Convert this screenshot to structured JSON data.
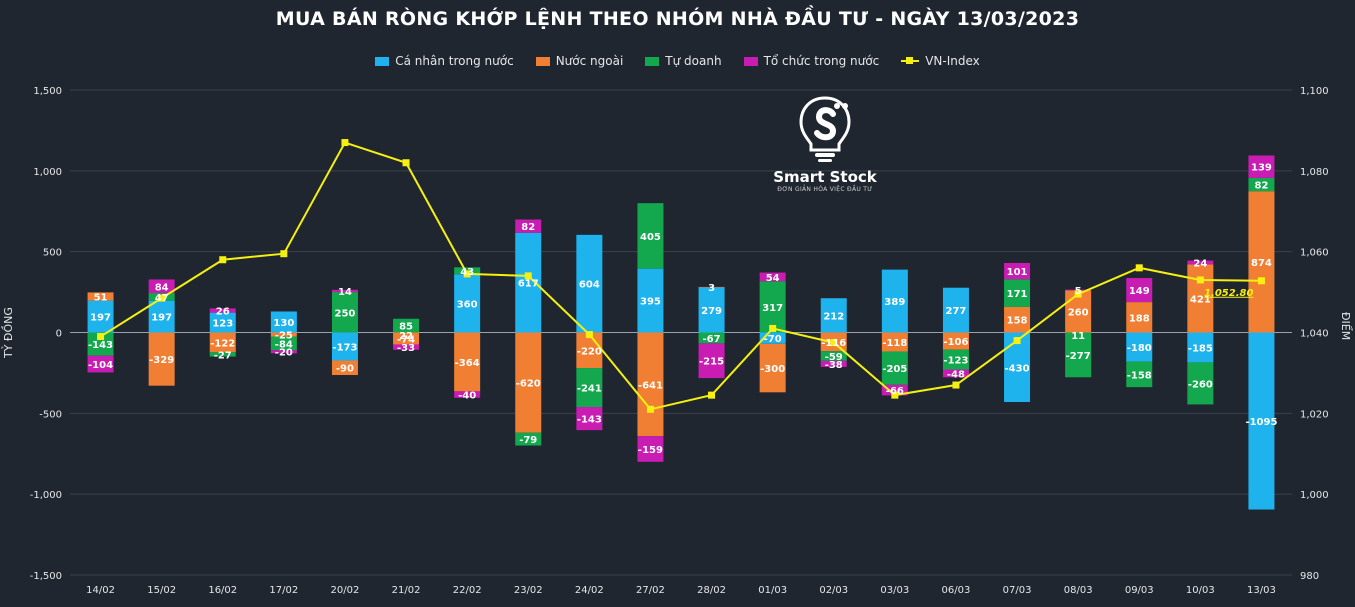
{
  "title": "MUA BÁN RÒNG KHỚP LỆNH THEO NHÓM NHÀ ĐẦU TƯ - NGÀY 13/03/2023",
  "logo": {
    "name": "Smart Stock",
    "tagline": "ĐƠN GIẢN HÓA VIỆC ĐẦU TƯ",
    "icon": "bulb-s-logo-icon"
  },
  "colors": {
    "ca_nhan": "#1fb3ee",
    "nuoc_ngoai": "#f07f33",
    "tu_doanh": "#14a84e",
    "to_chuc": "#c81cb3",
    "vnindex": "#f5f010",
    "background": "#1f2630"
  },
  "chart_data": {
    "type": "bar",
    "stacked": true,
    "categories": [
      "14/02",
      "15/02",
      "16/02",
      "17/02",
      "20/02",
      "21/02",
      "22/02",
      "23/02",
      "24/02",
      "27/02",
      "28/02",
      "01/03",
      "02/03",
      "03/03",
      "06/03",
      "07/03",
      "08/03",
      "09/03",
      "10/03",
      "13/03"
    ],
    "series": [
      {
        "name": "Cá nhân trong nước",
        "key": "ca_nhan",
        "values": [
          197,
          197,
          123,
          130,
          -173,
          null,
          360,
          617,
          604,
          395,
          279,
          -70,
          212,
          389,
          277,
          -430,
          null,
          -180,
          -185,
          -1095
        ]
      },
      {
        "name": "Nước ngoài",
        "key": "nuoc_ngoai",
        "values": [
          51,
          -329,
          -122,
          -25,
          -90,
          -74,
          -364,
          -620,
          -220,
          -641,
          3,
          -300,
          -116,
          -118,
          -106,
          158,
          260,
          188,
          421,
          874
        ]
      },
      {
        "name": "Tự doanh",
        "key": "tu_doanh",
        "values": [
          -143,
          47,
          -27,
          -84,
          250,
          85,
          43,
          -79,
          -241,
          405,
          -67,
          317,
          -59,
          -205,
          -123,
          171,
          -277,
          -158,
          -260,
          82
        ]
      },
      {
        "name": "Tổ chức trong nước",
        "key": "to_chuc",
        "values": [
          -104,
          84,
          26,
          -20,
          14,
          -33,
          -40,
          82,
          -143,
          -159,
          -215,
          54,
          -38,
          -66,
          -48,
          101,
          5,
          149,
          24,
          139
        ]
      }
    ],
    "extra_labels": [
      {
        "category": "21/02",
        "value": "22"
      },
      {
        "category": "08/03",
        "value": "11"
      }
    ],
    "line": {
      "name": "VN-Index",
      "key": "vnindex",
      "values": [
        1039.0,
        1048.5,
        1058.0,
        1059.5,
        1087.0,
        1082.0,
        1054.5,
        1054.0,
        1039.5,
        1021.0,
        1024.5,
        1041.0,
        1037.5,
        1024.5,
        1027.0,
        1038.0,
        1049.5,
        1056.0,
        1053.0,
        1052.8
      ],
      "last_label": "1,052.80"
    },
    "ylabel": "TỶ ĐỒNG",
    "y2label": "ĐIỂM",
    "ylim": [
      -1500,
      1500
    ],
    "y2lim": [
      980,
      1100
    ],
    "yticks": [
      -1500,
      -1000,
      -500,
      0,
      500,
      1000,
      1500
    ],
    "y2ticks": [
      980,
      1000,
      1020,
      1040,
      1060,
      1080,
      1100
    ],
    "ytick_labels": [
      "-1,500",
      "-1,000",
      "-500",
      "0",
      "500",
      "1,000",
      "1,500"
    ],
    "y2tick_labels": [
      "980",
      "1,000",
      "1,020",
      "1,040",
      "1,060",
      "1,080",
      "1,100"
    ],
    "grid": true,
    "legend": "top-center"
  }
}
